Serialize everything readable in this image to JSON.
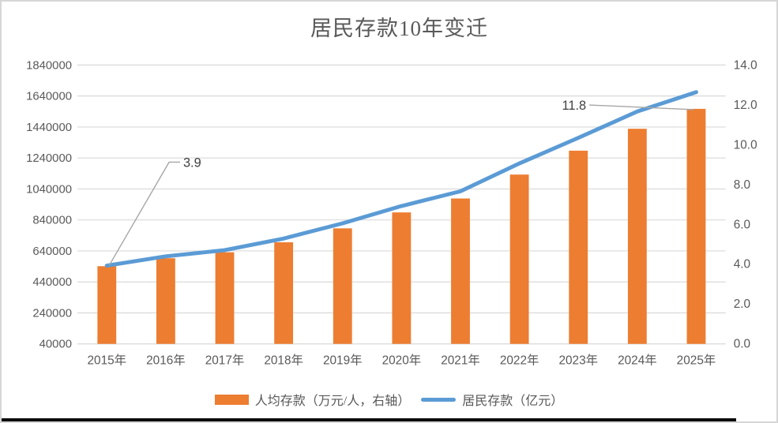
{
  "chart_data": {
    "type": "bar",
    "title": "居民存款10年变迁",
    "categories": [
      "2015年",
      "2016年",
      "2017年",
      "2018年",
      "2019年",
      "2020年",
      "2021年",
      "2022年",
      "2023年",
      "2024年",
      "2025年"
    ],
    "series": [
      {
        "name": "人均存款（万元/人，右轴）",
        "type": "bar",
        "axis": "right",
        "color": "#ED7D31",
        "values": [
          3.9,
          4.3,
          4.6,
          5.1,
          5.8,
          6.6,
          7.3,
          8.5,
          9.7,
          10.8,
          11.8
        ]
      },
      {
        "name": "居民存款（亿元）",
        "type": "line",
        "axis": "left",
        "color": "#5B9BD5",
        "values": [
          545000,
          605000,
          645000,
          720000,
          818000,
          930000,
          1025000,
          1205000,
          1370000,
          1540000,
          1665000
        ]
      }
    ],
    "left_axis": {
      "min": 40000,
      "max": 1840000,
      "ticks": [
        40000,
        240000,
        440000,
        640000,
        840000,
        1040000,
        1240000,
        1440000,
        1640000,
        1840000
      ]
    },
    "right_axis": {
      "min": 0,
      "max": 14,
      "ticks": [
        "0.0",
        "2.0",
        "4.0",
        "6.0",
        "8.0",
        "10.0",
        "12.0",
        "14.0"
      ]
    },
    "annotations": [
      {
        "text": "3.9",
        "series": 0,
        "category_index": 0
      },
      {
        "text": "11.8",
        "series": 0,
        "category_index": 10
      }
    ],
    "legend_position": "bottom",
    "grid": true,
    "colors": {
      "bar": "#ED7D31",
      "line": "#5B9BD5",
      "grid": "#D9D9D9",
      "axis_text": "#595959",
      "title_text": "#595959",
      "annotation_line": "#A6A6A6",
      "annotation_text": "#404040"
    }
  }
}
